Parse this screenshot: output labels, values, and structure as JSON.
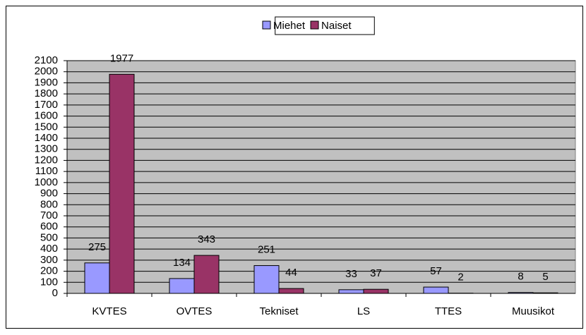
{
  "chart_data": {
    "type": "bar",
    "categories": [
      "KVTES",
      "OVTES",
      "Tekniset",
      "LS",
      "TTES",
      "Muusikot"
    ],
    "series": [
      {
        "name": "Miehet",
        "color": "#9999ff",
        "values": [
          275,
          134,
          251,
          33,
          57,
          8
        ]
      },
      {
        "name": "Naiset",
        "color": "#993366",
        "values": [
          1977,
          343,
          44,
          37,
          2,
          5
        ]
      }
    ],
    "ylim": [
      0,
      2100
    ],
    "yticks": [
      0,
      100,
      200,
      300,
      400,
      500,
      600,
      700,
      800,
      900,
      1000,
      1100,
      1200,
      1300,
      1400,
      1500,
      1600,
      1700,
      1800,
      1900,
      2000,
      2100
    ],
    "grid": true,
    "legend": "top",
    "plot_background": "#c0c0c0"
  }
}
